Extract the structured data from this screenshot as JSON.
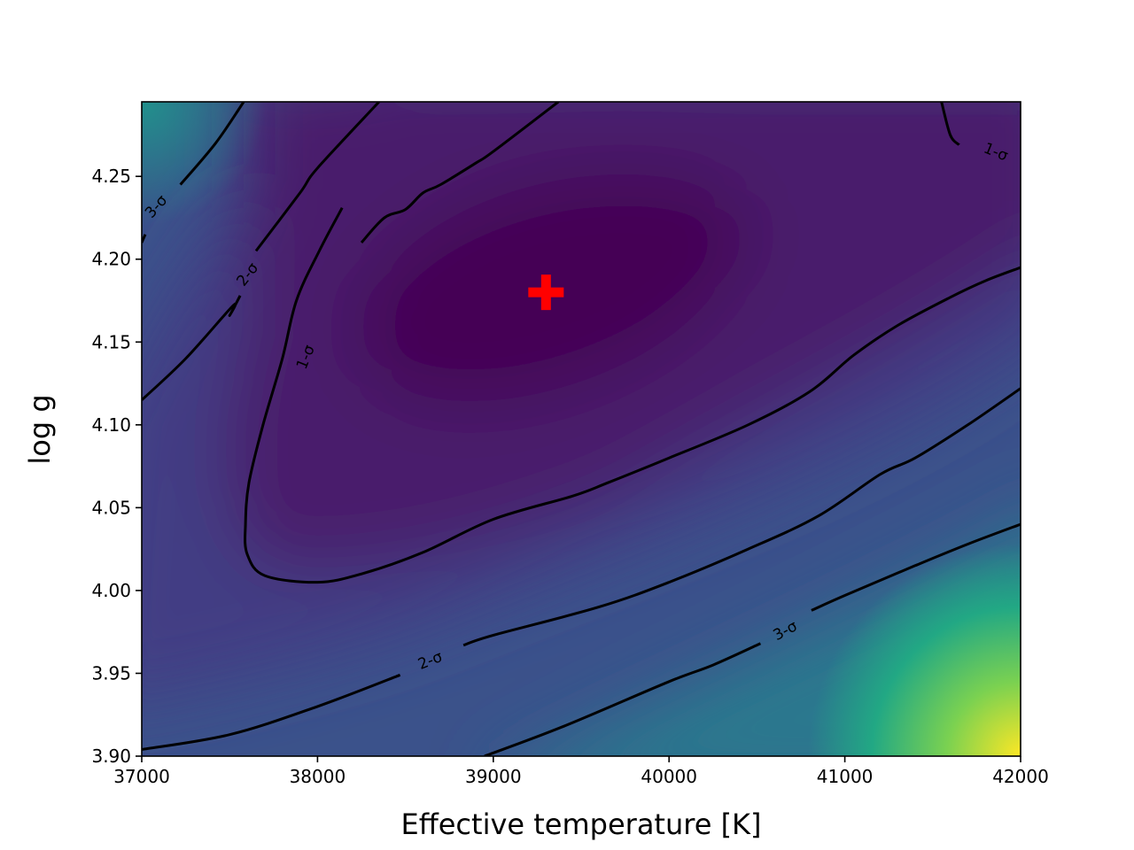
{
  "chart_data": {
    "type": "heatmap",
    "title": "",
    "xlabel": "Effective temperature [K]",
    "ylabel": "log g",
    "xlim": [
      37000,
      42000
    ],
    "ylim": [
      3.9,
      4.295
    ],
    "xticks": [
      "37000",
      "38000",
      "39000",
      "40000",
      "41000",
      "42000"
    ],
    "yticks": [
      "3.90",
      "3.95",
      "4.00",
      "4.05",
      "4.10",
      "4.15",
      "4.20",
      "4.25"
    ],
    "colormap": "viridis",
    "colors": {
      "low": "#440154",
      "mid": "#3b528b",
      "mid2": "#21918c",
      "mid3": "#5ec962",
      "high": "#fde725",
      "marker": "#ff0000"
    },
    "best_fit": {
      "teff": 39300,
      "logg": 4.18
    },
    "contours": [
      {
        "name": "1-σ",
        "label": "1-σ",
        "paths": [
          [
            [
              38140,
              4.231
            ],
            [
              38010,
              4.205
            ],
            [
              37880,
              4.175
            ],
            [
              37800,
              4.14
            ],
            [
              37690,
              4.1
            ],
            [
              37610,
              4.065
            ],
            [
              37590,
              4.04
            ],
            [
              37600,
              4.022
            ],
            [
              37700,
              4.009
            ],
            [
              38000,
              4.005
            ],
            [
              38250,
              4.01
            ],
            [
              38600,
              4.023
            ],
            [
              39000,
              4.043
            ],
            [
              39450,
              4.057
            ],
            [
              39650,
              4.065
            ],
            [
              40000,
              4.08
            ],
            [
              40450,
              4.1
            ],
            [
              40800,
              4.12
            ],
            [
              41050,
              4.142
            ],
            [
              41300,
              4.16
            ],
            [
              41600,
              4.177
            ],
            [
              41800,
              4.187
            ],
            [
              42000,
              4.195
            ]
          ],
          [
            [
              39370,
              4.295
            ],
            [
              39000,
              4.265
            ],
            [
              38900,
              4.258
            ],
            [
              38700,
              4.245
            ],
            [
              38600,
              4.24
            ],
            [
              38500,
              4.23
            ],
            [
              38380,
              4.225
            ],
            [
              38250,
              4.21
            ]
          ],
          [
            [
              41550,
              4.295
            ],
            [
              41600,
              4.275
            ],
            [
              41650,
              4.269
            ]
          ]
        ],
        "labels": [
          {
            "text": "1-σ",
            "x": 37930,
            "y": 4.141,
            "angle": -68
          },
          {
            "text": "1-σ",
            "x": 41860,
            "y": 4.265,
            "angle": 22
          }
        ]
      },
      {
        "name": "2-σ",
        "label": "2-σ",
        "paths": [
          [
            [
              37000,
              4.115
            ],
            [
              37250,
              4.14
            ],
            [
              37520,
              4.172
            ],
            [
              37500,
              4.166
            ],
            [
              37560,
              4.178
            ]
          ],
          [
            [
              37650,
              4.205
            ],
            [
              37900,
              4.24
            ],
            [
              38000,
              4.255
            ],
            [
              38350,
              4.295
            ]
          ],
          [
            [
              37000,
              3.904
            ],
            [
              37500,
              3.913
            ],
            [
              38000,
              3.93
            ],
            [
              38470,
              3.949
            ]
          ],
          [
            [
              38830,
              3.967
            ],
            [
              39000,
              3.973
            ],
            [
              39600,
              3.99
            ],
            [
              40000,
              4.005
            ],
            [
              40450,
              4.025
            ],
            [
              40850,
              4.045
            ],
            [
              41200,
              4.07
            ],
            [
              41400,
              4.08
            ],
            [
              41700,
              4.1
            ],
            [
              42000,
              4.122
            ]
          ]
        ],
        "labels": [
          {
            "text": "2-σ",
            "x": 37600,
            "y": 4.191,
            "angle": -52
          },
          {
            "text": "2-σ",
            "x": 38640,
            "y": 3.958,
            "angle": -22
          }
        ]
      },
      {
        "name": "3-σ",
        "label": "3-σ",
        "paths": [
          [
            [
              37020,
              4.215
            ],
            [
              37000,
              4.21
            ]
          ],
          [
            [
              37220,
              4.245
            ],
            [
              37420,
              4.27
            ],
            [
              37580,
              4.295
            ]
          ],
          [
            [
              38950,
              3.9
            ],
            [
              39400,
              3.918
            ],
            [
              40000,
              3.945
            ],
            [
              40250,
              3.955
            ],
            [
              40520,
              3.968
            ]
          ],
          [
            [
              40810,
              3.988
            ],
            [
              41000,
              3.997
            ],
            [
              41400,
              4.015
            ],
            [
              41700,
              4.028
            ],
            [
              42000,
              4.04
            ]
          ]
        ],
        "labels": [
          {
            "text": "3-σ",
            "x": 37080,
            "y": 4.232,
            "angle": -48
          },
          {
            "text": "3-σ",
            "x": 40660,
            "y": 3.976,
            "angle": -28
          }
        ]
      }
    ]
  }
}
